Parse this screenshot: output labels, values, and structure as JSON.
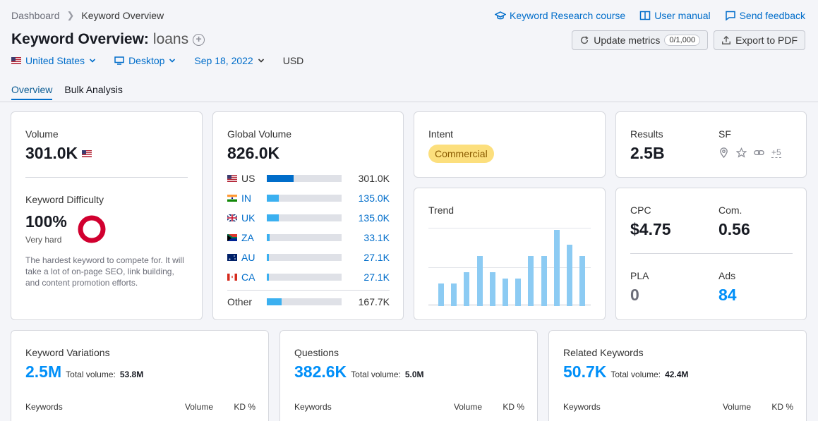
{
  "breadcrumb": {
    "root": "Dashboard",
    "current": "Keyword Overview"
  },
  "top_links": {
    "course": "Keyword Research course",
    "manual": "User manual",
    "feedback": "Send feedback"
  },
  "title": {
    "prefix": "Keyword Overview:",
    "keyword": "loans"
  },
  "actions": {
    "update": "Update metrics",
    "update_count": "0/1,000",
    "export": "Export to PDF"
  },
  "filters": {
    "country": "United States",
    "device": "Desktop",
    "date": "Sep 18, 2022",
    "currency": "USD"
  },
  "tabs": [
    "Overview",
    "Bulk Analysis"
  ],
  "volume": {
    "label": "Volume",
    "value": "301.0K"
  },
  "kd": {
    "label": "Keyword Difficulty",
    "value": "100%",
    "level": "Very hard",
    "desc": "The hardest keyword to compete for. It will take a lot of on-page SEO, link building, and content promotion efforts."
  },
  "global_volume": {
    "label": "Global Volume",
    "value": "826.0K",
    "rows": [
      {
        "code": "US",
        "value": "301.0K",
        "share": 0.36
      },
      {
        "code": "IN",
        "value": "135.0K",
        "share": 0.16
      },
      {
        "code": "UK",
        "value": "135.0K",
        "share": 0.16
      },
      {
        "code": "ZA",
        "value": "33.1K",
        "share": 0.04
      },
      {
        "code": "AU",
        "value": "27.1K",
        "share": 0.03
      },
      {
        "code": "CA",
        "value": "27.1K",
        "share": 0.03
      }
    ],
    "other": {
      "label": "Other",
      "value": "167.7K",
      "share": 0.2
    }
  },
  "intent": {
    "label": "Intent",
    "value": "Commercial"
  },
  "results": {
    "label": "Results",
    "value": "2.5B",
    "sf_label": "SF",
    "sf_more": "+5"
  },
  "trend": {
    "label": "Trend",
    "values": [
      0.3,
      0.3,
      0.44,
      0.66,
      0.44,
      0.36,
      0.36,
      0.66,
      0.66,
      1.0,
      0.81,
      0.66
    ]
  },
  "cpc": {
    "label": "CPC",
    "value": "$4.75"
  },
  "com": {
    "label": "Com.",
    "value": "0.56"
  },
  "pla": {
    "label": "PLA",
    "value": "0"
  },
  "ads": {
    "label": "Ads",
    "value": "84"
  },
  "variations": {
    "label": "Keyword Variations",
    "value": "2.5M",
    "total_label": "Total volume:",
    "total": "53.8M"
  },
  "questions": {
    "label": "Questions",
    "value": "382.6K",
    "total_label": "Total volume:",
    "total": "5.0M"
  },
  "related": {
    "label": "Related Keywords",
    "value": "50.7K",
    "total_label": "Total volume:",
    "total": "42.4M"
  },
  "table_headers": {
    "keywords": "Keywords",
    "volume": "Volume",
    "kd": "KD %"
  },
  "colors": {
    "accent": "#006dca",
    "kd_ring": "#d1002f",
    "intent_bg": "#fcdf7d",
    "bar": "#8ccbf3"
  }
}
